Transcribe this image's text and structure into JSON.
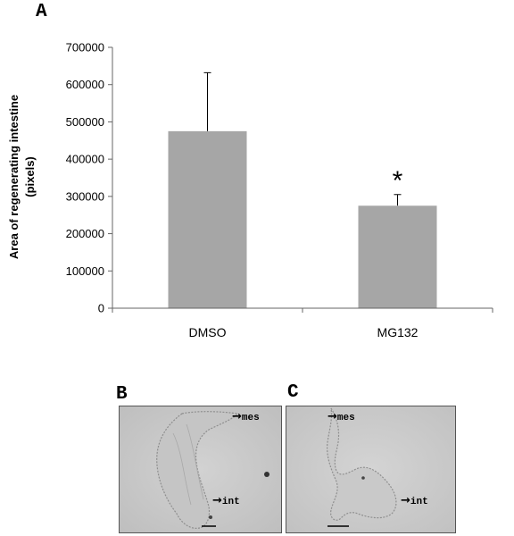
{
  "panels": {
    "a": "A",
    "b": "B",
    "c": "C"
  },
  "chart_data": {
    "type": "bar",
    "categories": [
      "DMSO",
      "MG132"
    ],
    "values": [
      475000,
      275000
    ],
    "error_upper": [
      632000,
      305000
    ],
    "ylabel": "Area of regenerating intestine (pixels)",
    "ylabel_lines": [
      "Area of regenerating intestine",
      "(pixels)"
    ],
    "ylim": [
      0,
      700000
    ],
    "yticks": [
      0,
      100000,
      200000,
      300000,
      400000,
      500000,
      600000,
      700000
    ],
    "ytick_labels": [
      "0",
      "100000",
      "200000",
      "300000",
      "400000",
      "500000",
      "600000",
      "700000"
    ],
    "significance": [
      "",
      "*"
    ],
    "grid": false,
    "bar_color": "#a6a6a6"
  },
  "micrographs": {
    "b": {
      "labels": [
        "mes",
        "int"
      ],
      "arrow": "→"
    },
    "c": {
      "labels": [
        "mes",
        "int"
      ],
      "arrow": "→"
    }
  }
}
